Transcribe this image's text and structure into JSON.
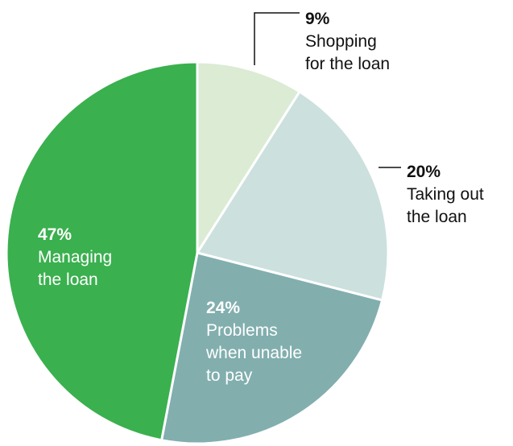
{
  "chart_data": {
    "type": "pie",
    "slices": [
      {
        "value": 9,
        "pct_label": "9%",
        "label_lines": [
          "Shopping",
          "for the loan"
        ],
        "color": "#dcebd4",
        "label_placement": "outside",
        "text_color": "#111111"
      },
      {
        "value": 20,
        "pct_label": "20%",
        "label_lines": [
          "Taking out",
          "the loan"
        ],
        "color": "#cce0de",
        "label_placement": "outside",
        "text_color": "#111111"
      },
      {
        "value": 24,
        "pct_label": "24%",
        "label_lines": [
          "Problems",
          "when unable",
          "to pay"
        ],
        "color": "#82aeae",
        "label_placement": "inside",
        "text_color": "#ffffff"
      },
      {
        "value": 47,
        "pct_label": "47%",
        "label_lines": [
          "Managing",
          "the loan"
        ],
        "color": "#3ab04f",
        "label_placement": "inside",
        "text_color": "#ffffff"
      }
    ],
    "start": "top",
    "direction": "clockwise",
    "slice_border_color": "#ffffff",
    "leader_line_color": "#111111"
  }
}
